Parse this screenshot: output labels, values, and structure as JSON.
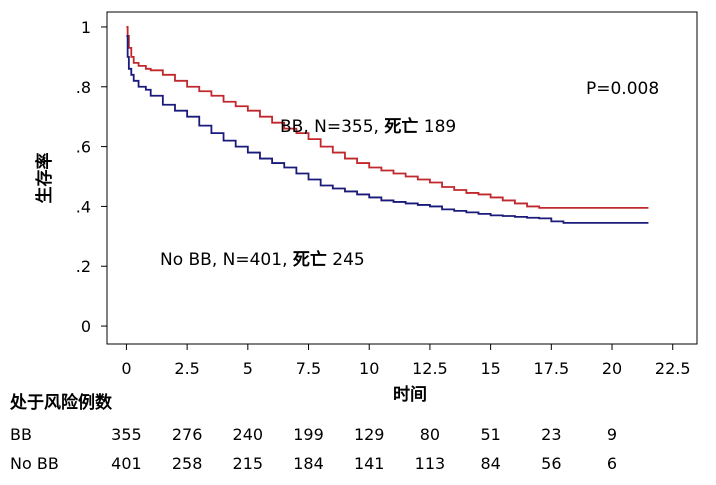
{
  "chart_data": {
    "type": "line",
    "title": "",
    "xlabel": "时间",
    "ylabel": "生存率",
    "xlim": [
      -0.8,
      23.5
    ],
    "ylim": [
      -0.06,
      1.05
    ],
    "x_ticks": [
      "0",
      "2.5",
      "5",
      "7.5",
      "10",
      "12.5",
      "15",
      "17.5",
      "20",
      "22.5"
    ],
    "x_tick_values": [
      0,
      2.5,
      5,
      7.5,
      10,
      12.5,
      15,
      17.5,
      20,
      22.5
    ],
    "y_ticks": [
      "0",
      ".2",
      ".4",
      ".6",
      ".8",
      "1"
    ],
    "y_tick_values": [
      0,
      0.2,
      0.4,
      0.6,
      0.8,
      1.0
    ],
    "grid": false,
    "p_value_label": "P=0.008",
    "series": [
      {
        "name": "BB",
        "label_prefix": "BB, N=355, ",
        "label_bold": "死亡",
        "label_suffix": " 189",
        "color": "#c0282d",
        "x": [
          0,
          0.05,
          0.1,
          0.2,
          0.3,
          0.5,
          0.8,
          1.0,
          1.5,
          2.0,
          2.5,
          3.0,
          3.5,
          4.0,
          4.5,
          5.0,
          5.5,
          6.0,
          6.5,
          7.0,
          7.5,
          8.0,
          8.5,
          9.0,
          9.5,
          10.0,
          10.5,
          11.0,
          11.5,
          12.0,
          12.5,
          13.0,
          13.5,
          14.0,
          14.5,
          15.0,
          15.5,
          16.0,
          16.5,
          17.0,
          17.5,
          18.0,
          19.0,
          20.0,
          21.0,
          21.5
        ],
        "y": [
          1.0,
          0.97,
          0.93,
          0.9,
          0.88,
          0.87,
          0.86,
          0.855,
          0.84,
          0.82,
          0.8,
          0.785,
          0.77,
          0.75,
          0.735,
          0.72,
          0.7,
          0.68,
          0.66,
          0.645,
          0.625,
          0.6,
          0.58,
          0.56,
          0.545,
          0.53,
          0.52,
          0.51,
          0.5,
          0.49,
          0.48,
          0.465,
          0.455,
          0.445,
          0.44,
          0.43,
          0.42,
          0.41,
          0.4,
          0.395,
          0.395,
          0.395,
          0.395,
          0.395,
          0.395,
          0.395
        ]
      },
      {
        "name": "No BB",
        "label_prefix": "No BB, N=401, ",
        "label_bold": "死亡",
        "label_suffix": " 245",
        "color": "#1a1a7a",
        "x": [
          0,
          0.05,
          0.1,
          0.2,
          0.3,
          0.5,
          0.8,
          1.0,
          1.5,
          2.0,
          2.5,
          3.0,
          3.5,
          4.0,
          4.5,
          5.0,
          5.5,
          6.0,
          6.5,
          7.0,
          7.5,
          8.0,
          8.5,
          9.0,
          9.5,
          10.0,
          10.5,
          11.0,
          11.5,
          12.0,
          12.5,
          13.0,
          13.5,
          14.0,
          14.5,
          15.0,
          15.5,
          16.0,
          16.5,
          17.0,
          17.5,
          18.0,
          19.0,
          20.0,
          21.0,
          21.5
        ],
        "y": [
          0.97,
          0.9,
          0.86,
          0.84,
          0.82,
          0.8,
          0.79,
          0.77,
          0.74,
          0.72,
          0.7,
          0.67,
          0.645,
          0.62,
          0.6,
          0.58,
          0.56,
          0.545,
          0.53,
          0.51,
          0.49,
          0.47,
          0.46,
          0.45,
          0.44,
          0.43,
          0.42,
          0.415,
          0.41,
          0.405,
          0.4,
          0.39,
          0.385,
          0.38,
          0.375,
          0.37,
          0.368,
          0.365,
          0.362,
          0.36,
          0.35,
          0.345,
          0.345,
          0.345,
          0.345,
          0.345
        ]
      }
    ],
    "risk_table": {
      "title": "处于风险例数",
      "times": [
        0,
        2.5,
        5,
        7.5,
        10,
        12.5,
        15,
        17.5,
        20
      ],
      "rows": [
        {
          "label": "BB",
          "values": [
            "355",
            "276",
            "240",
            "199",
            "129",
            "80",
            "51",
            "23",
            "9"
          ]
        },
        {
          "label": "No BB",
          "values": [
            "401",
            "258",
            "215",
            "184",
            "141",
            "113",
            "84",
            "56",
            "6"
          ]
        }
      ]
    }
  }
}
